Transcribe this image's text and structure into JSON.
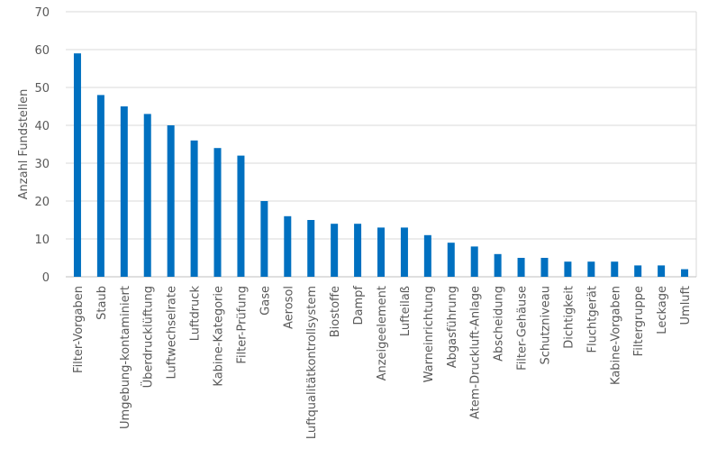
{
  "chart_data": {
    "type": "bar",
    "title": "",
    "xlabel": "",
    "ylabel": "Anzahl Fundstellen",
    "ylim": [
      0,
      70
    ],
    "yticks": [
      0,
      10,
      20,
      30,
      40,
      50,
      60,
      70
    ],
    "grid": true,
    "legend": "none",
    "bar_color": "#0070c0",
    "categories": [
      "Filter-Vorgaben",
      "Staub",
      "Umgebung-kontaminiert",
      "Überdrucklüftung",
      "Luftwechselrate",
      "Luftdruck",
      "Kabine-Kategorie",
      "Filter-Prüfung",
      "Gase",
      "Aerosol",
      "Luftqualitätkontrollsystem",
      "Biostoffe",
      "Dampf",
      "Anzeigeelement",
      "Lufteilaß",
      "Warneinrichtung",
      "Abgasführung",
      "Atem-Druckluft-Anlage",
      "Abscheidung",
      "Filter-Gehäuse",
      "Schutzniveau",
      "Dichtigkeit",
      "Fluchtgerät",
      "Kabine-Vorgaben",
      "Filtergruppe",
      "Leckage",
      "Umluft"
    ],
    "values": [
      59,
      48,
      45,
      43,
      40,
      36,
      34,
      32,
      20,
      16,
      15,
      14,
      14,
      13,
      13,
      11,
      9,
      8,
      6,
      5,
      5,
      4,
      4,
      4,
      3,
      3,
      2
    ]
  }
}
